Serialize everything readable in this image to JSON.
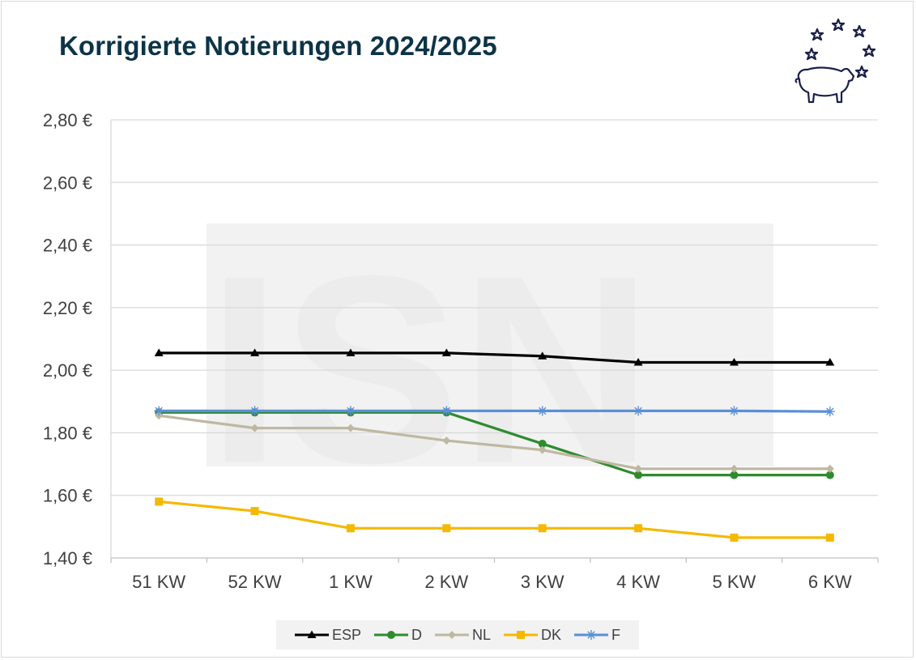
{
  "title": "Korrigierte Notierungen 2024/2025",
  "watermark": "ISN",
  "chart_data": {
    "type": "line",
    "title": "Korrigierte Notierungen 2024/2025",
    "categories": [
      "51 KW",
      "52 KW",
      "1 KW",
      "2 KW",
      "3 KW",
      "4 KW",
      "5 KW",
      "6 KW"
    ],
    "y_ticks": [
      "1,40 €",
      "1,60 €",
      "1,80 €",
      "2,00 €",
      "2,20 €",
      "2,40 €",
      "2,60 €",
      "2,80 €"
    ],
    "ylim": [
      1.4,
      2.8
    ],
    "grid": true,
    "legend_position": "bottom",
    "series": [
      {
        "name": "ESP",
        "color": "#000000",
        "marker": "triangle",
        "values": [
          2.055,
          2.055,
          2.055,
          2.055,
          2.045,
          2.025,
          2.025,
          2.025
        ]
      },
      {
        "name": "D",
        "color": "#2e8b2e",
        "marker": "circle",
        "values": [
          1.865,
          1.865,
          1.865,
          1.865,
          1.765,
          1.665,
          1.665,
          1.665
        ]
      },
      {
        "name": "NL",
        "color": "#bfb8a0",
        "marker": "diamond",
        "values": [
          1.855,
          1.815,
          1.815,
          1.775,
          1.745,
          1.685,
          1.685,
          1.685
        ]
      },
      {
        "name": "DK",
        "color": "#f5b800",
        "marker": "square",
        "values": [
          1.58,
          1.55,
          1.495,
          1.495,
          1.495,
          1.495,
          1.465,
          1.465
        ]
      },
      {
        "name": "F",
        "color": "#5b8fd6",
        "marker": "star",
        "values": [
          1.87,
          1.87,
          1.87,
          1.87,
          1.87,
          1.87,
          1.87,
          1.868
        ]
      }
    ]
  }
}
